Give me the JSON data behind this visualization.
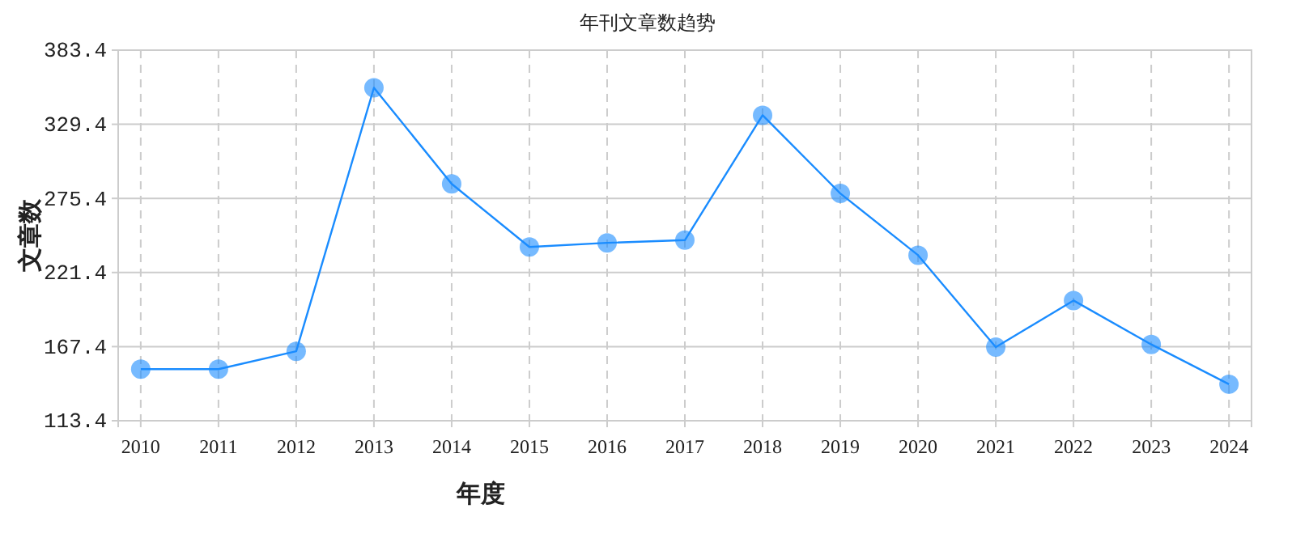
{
  "chart_data": {
    "type": "line",
    "title": "年刊文章数趋势",
    "xlabel": "年度",
    "ylabel": "文章数",
    "categories": [
      "2010",
      "2011",
      "2012",
      "2013",
      "2014",
      "2015",
      "2016",
      "2017",
      "2018",
      "2019",
      "2020",
      "2021",
      "2022",
      "2023",
      "2024"
    ],
    "series": [
      {
        "color": "#1a8cff",
        "values": [
          151,
          151,
          164,
          356,
          286,
          240,
          243,
          245,
          336,
          279,
          234,
          167,
          201,
          169,
          140
        ]
      }
    ],
    "ylim": [
      113.4,
      383.4
    ],
    "yticks": [
      113.4,
      167.4,
      221.4,
      275.4,
      329.4,
      383.4
    ],
    "grid": true,
    "marker": "circle",
    "line_style": "solid"
  }
}
